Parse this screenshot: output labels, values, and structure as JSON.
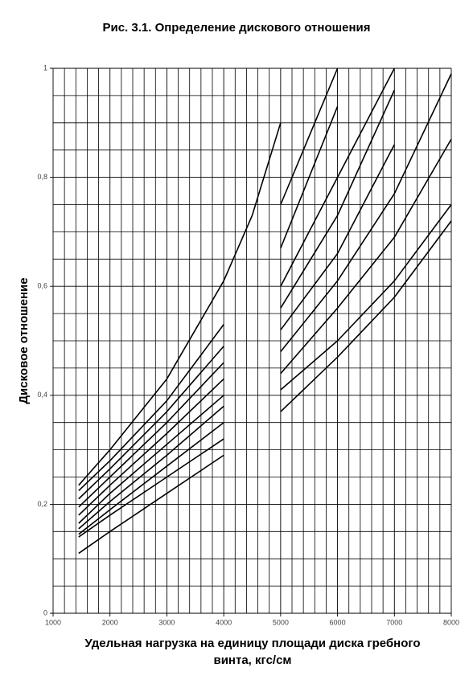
{
  "chart_data": {
    "type": "line",
    "title": "Рис. 3.1. Определение дискового отношения",
    "xlabel": "Удельная нагрузка на единицу площади диска гребного винта, кгс/см",
    "ylabel": "Дисковое отношение",
    "x": [
      1450,
      2000,
      3000,
      4000,
      4500,
      5000,
      6000,
      7000,
      8000
    ],
    "series": [
      {
        "color": "#000000",
        "values": [
          0.235,
          0.3,
          0.43,
          0.61,
          0.73,
          0.9,
          null,
          null,
          null
        ]
      },
      {
        "color": "#000000",
        "values": [
          0.225,
          0.28,
          0.39,
          0.53,
          null,
          0.75,
          1.0,
          null,
          null
        ]
      },
      {
        "color": "#000000",
        "values": [
          0.21,
          0.265,
          0.37,
          0.49,
          null,
          0.67,
          0.93,
          null,
          null
        ]
      },
      {
        "color": "#000000",
        "values": [
          0.195,
          0.25,
          0.35,
          0.46,
          null,
          0.6,
          0.8,
          1.0,
          null
        ]
      },
      {
        "color": "#000000",
        "values": [
          0.18,
          0.235,
          0.33,
          0.43,
          null,
          0.56,
          0.73,
          0.96,
          null
        ]
      },
      {
        "color": "#000000",
        "values": [
          0.165,
          0.22,
          0.31,
          0.4,
          null,
          0.52,
          0.66,
          0.86,
          null
        ]
      },
      {
        "color": "#000000",
        "values": [
          0.155,
          0.205,
          0.29,
          0.38,
          null,
          0.48,
          0.61,
          0.77,
          0.99
        ]
      },
      {
        "color": "#000000",
        "values": [
          0.145,
          0.19,
          0.27,
          0.35,
          null,
          0.44,
          0.56,
          0.69,
          0.87
        ]
      },
      {
        "color": "#000000",
        "values": [
          0.14,
          0.18,
          0.25,
          0.32,
          null,
          0.41,
          0.5,
          0.61,
          0.75
        ]
      },
      {
        "color": "#000000",
        "values": [
          0.11,
          0.15,
          0.22,
          0.29,
          null,
          0.37,
          0.47,
          0.58,
          0.72
        ]
      }
    ],
    "xlim": [
      1000,
      8000
    ],
    "ylim": [
      0,
      1
    ],
    "xticks": [
      1000,
      2000,
      3000,
      4000,
      5000,
      6000,
      7000,
      8000
    ],
    "yticks": [
      0,
      {
        "value": 0.2,
        "label": "0,2"
      },
      {
        "value": 0.4,
        "label": "0,4"
      },
      {
        "value": 0.6,
        "label": "0,6"
      },
      {
        "value": 0.8,
        "label": "0,8"
      },
      1
    ],
    "minor_xticks": [
      1200,
      1400,
      1600,
      1800,
      2200,
      2400,
      2600,
      2800,
      3200,
      3400,
      3600,
      3800,
      4200,
      4400,
      4600,
      4800,
      5200,
      5400,
      5600,
      5800,
      6200,
      6400,
      6600,
      6800,
      7200,
      7400,
      7600,
      7800
    ],
    "minor_yticks": [
      0.05,
      0.1,
      0.15,
      0.25,
      0.3,
      0.35,
      0.45,
      0.5,
      0.55,
      0.65,
      0.7,
      0.75,
      0.85,
      0.9,
      0.95
    ],
    "grid": true
  }
}
